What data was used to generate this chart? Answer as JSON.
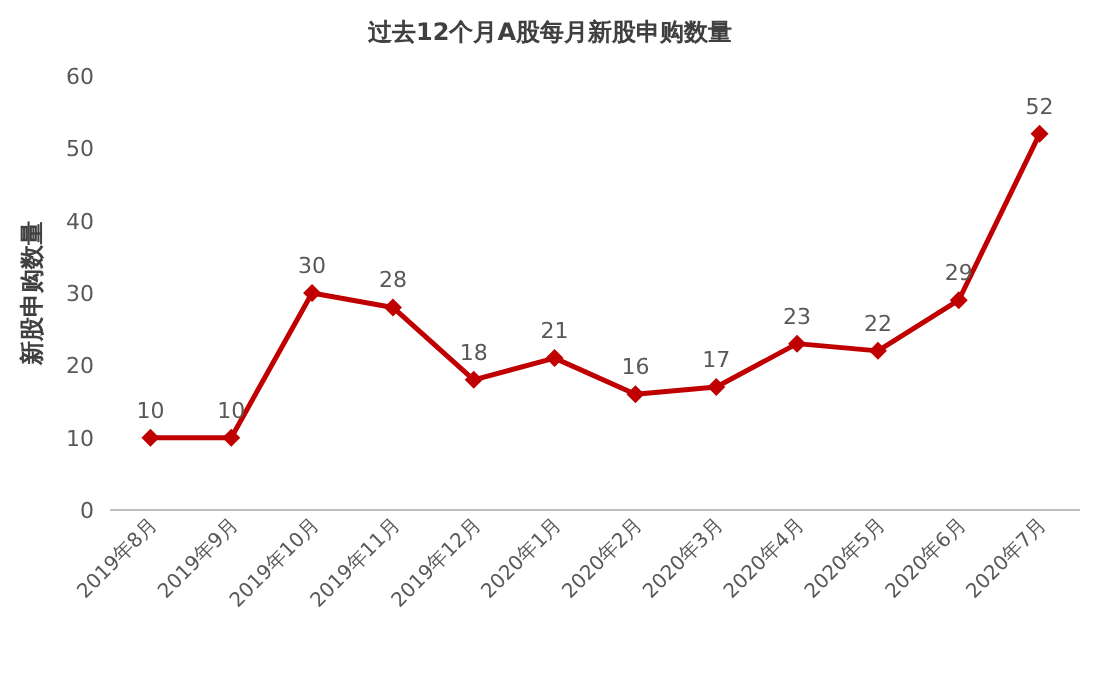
{
  "chart_data": {
    "type": "line",
    "title": "过去12个月A股每月新股申购数量",
    "ylabel": "新股申购数量",
    "categories": [
      "2019年8月",
      "2019年9月",
      "2019年10月",
      "2019年11月",
      "2019年12月",
      "2020年1月",
      "2020年2月",
      "2020年3月",
      "2020年4月",
      "2020年5月",
      "2020年6月",
      "2020年7月"
    ],
    "series": [
      {
        "color": "#c00000",
        "values": [
          10,
          10,
          30,
          28,
          18,
          21,
          16,
          17,
          23,
          22,
          29,
          52
        ]
      }
    ],
    "ylim": [
      0,
      60
    ],
    "yticks": [
      0,
      10,
      20,
      30,
      40,
      50,
      60
    ],
    "data_labels": true,
    "marker": "diamond"
  }
}
